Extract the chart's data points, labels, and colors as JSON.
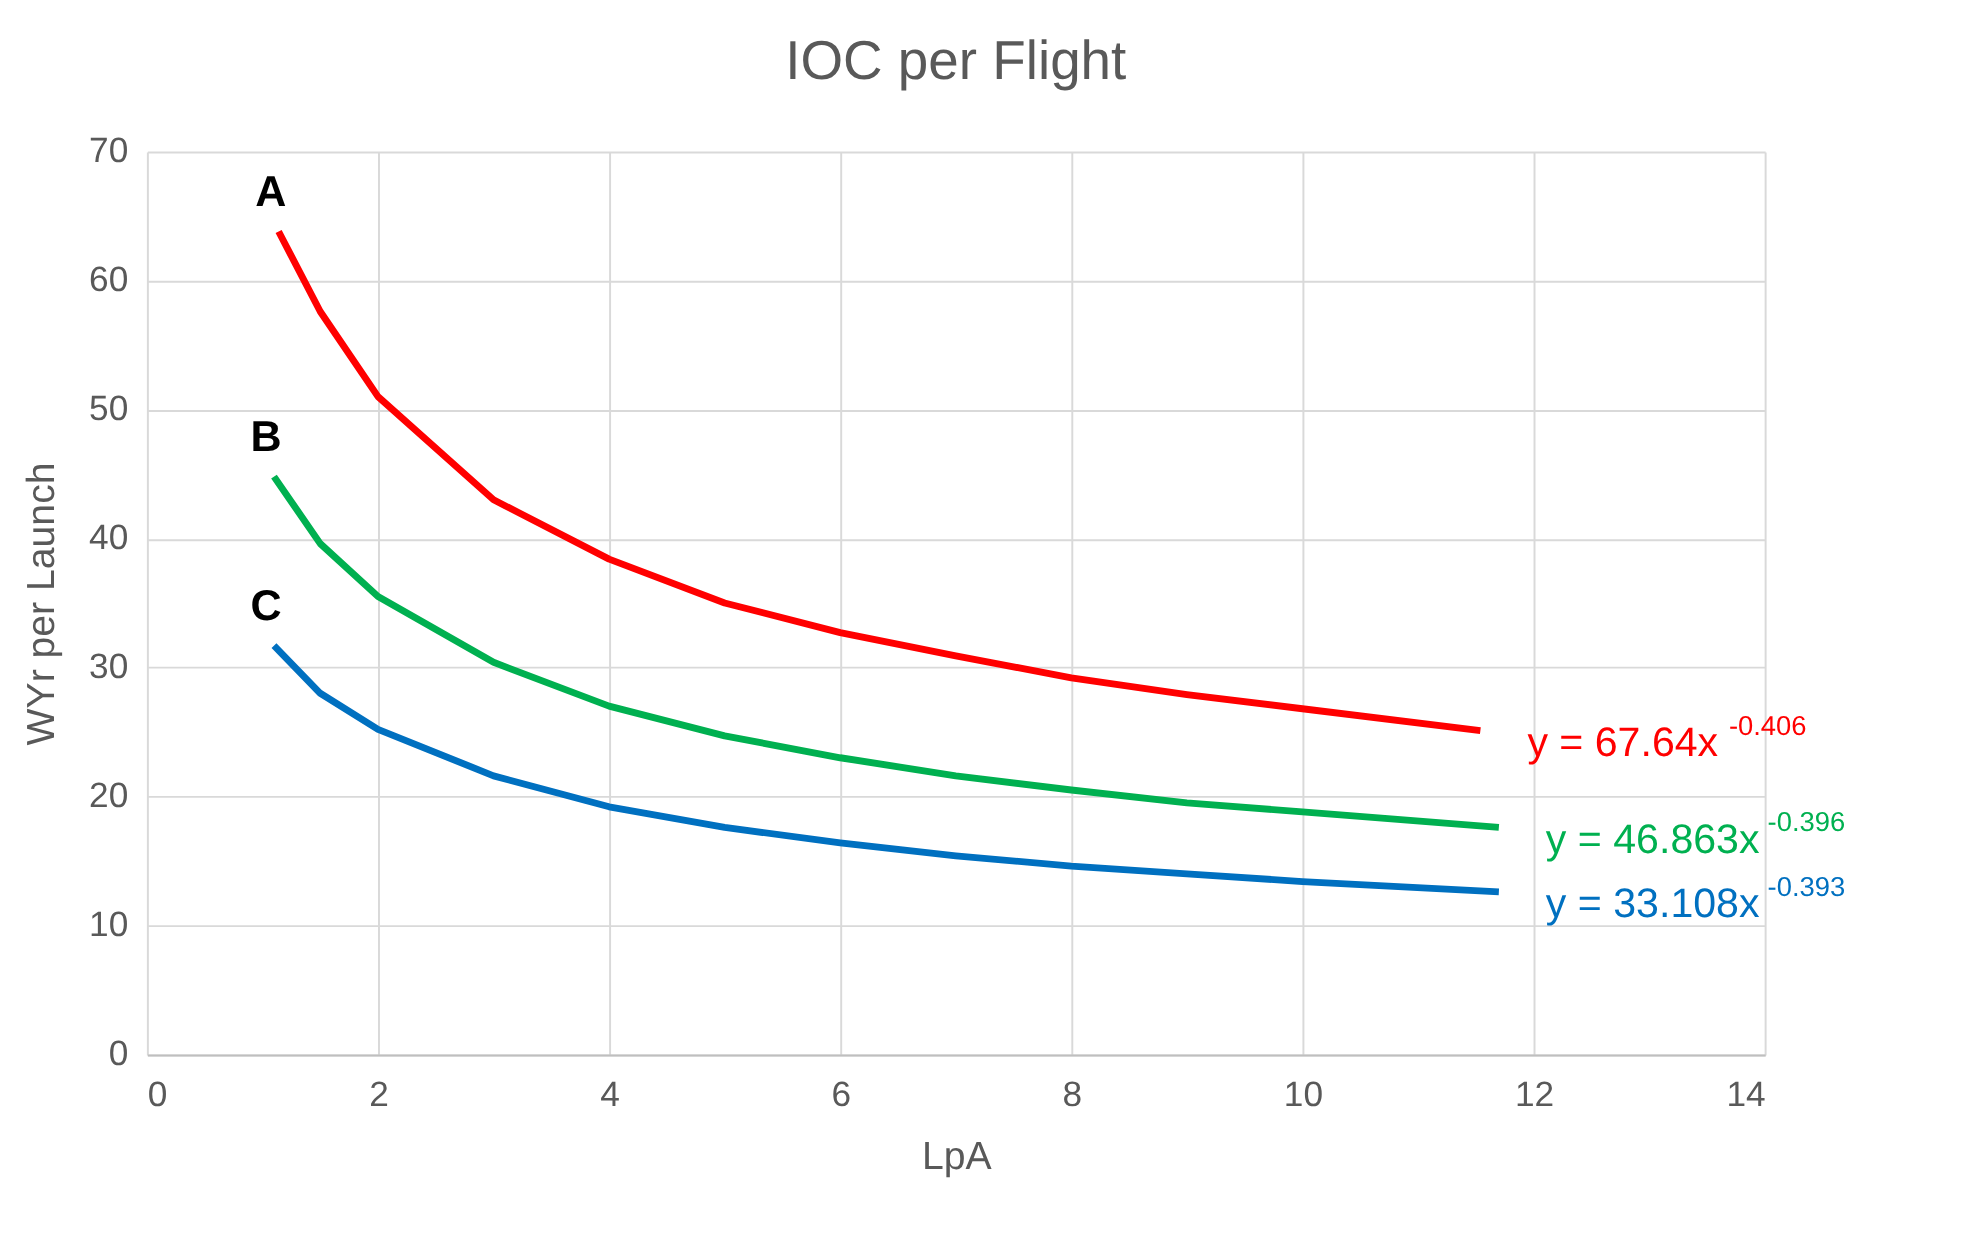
{
  "chart_data": {
    "type": "line",
    "title": "IOC per Flight",
    "xlabel": "LpA",
    "ylabel": "WYr per Launch",
    "xlim": [
      0,
      14
    ],
    "xticks": [
      0,
      2,
      4,
      6,
      8,
      10,
      12,
      14
    ],
    "ylim": [
      0,
      70
    ],
    "yticks": [
      0,
      10,
      20,
      30,
      40,
      50,
      60,
      70
    ],
    "grid": true,
    "marker": "none",
    "line_style": "solid",
    "series": [
      {
        "name": "A",
        "color": "#ff0000",
        "x": [
          1.14,
          1.5,
          2,
          3,
          4,
          5,
          6,
          7,
          8,
          9,
          10,
          11.54
        ],
        "values": [
          63.8,
          57.6,
          51.0,
          43.0,
          38.4,
          35.0,
          32.7,
          30.9,
          29.2,
          27.9,
          26.8,
          25.1
        ]
      },
      {
        "name": "B",
        "color": "#00b050",
        "x": [
          1.1,
          1.5,
          2,
          3,
          4,
          5,
          6,
          7,
          8,
          9,
          10,
          11.7
        ],
        "values": [
          44.8,
          39.6,
          35.5,
          30.4,
          27.0,
          24.7,
          23.0,
          21.6,
          20.5,
          19.5,
          18.8,
          17.6
        ]
      },
      {
        "name": "C",
        "color": "#0070c0",
        "x": [
          1.1,
          1.5,
          2,
          3,
          4,
          5,
          6,
          7,
          8,
          9,
          10,
          11.7
        ],
        "values": [
          31.7,
          28.0,
          25.2,
          21.6,
          19.2,
          17.6,
          16.4,
          15.4,
          14.6,
          14.0,
          13.4,
          12.6
        ]
      }
    ],
    "annotations": [
      "y = 67.64x$^{-0.406}$",
      "y = 46.863x$^{-0.396}$",
      "y = 33.108x$^{-0.393}$"
    ]
  }
}
